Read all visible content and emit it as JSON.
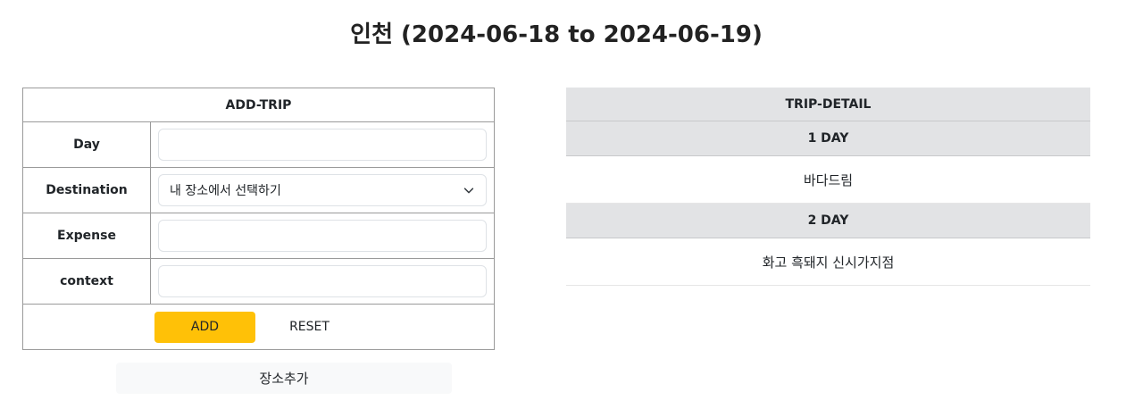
{
  "title": "인천 (2024-06-18 to 2024-06-19)",
  "add_trip": {
    "header": "ADD-TRIP",
    "fields": [
      {
        "label": "Day",
        "value": ""
      },
      {
        "label": "Destination",
        "value": "내 장소에서 선택하기"
      },
      {
        "label": "Expense",
        "value": ""
      },
      {
        "label": "context",
        "value": ""
      }
    ],
    "add_label": "ADD",
    "reset_label": "RESET",
    "add_place_label": "장소추가"
  },
  "trip_detail": {
    "header": "TRIP-DETAIL",
    "days": [
      {
        "label": "1 DAY",
        "items": [
          "바다드림"
        ]
      },
      {
        "label": "2 DAY",
        "items": [
          "화고 흑돼지 신시가지점"
        ]
      }
    ]
  },
  "colors": {
    "accent": "#ffc107",
    "header_bg": "#e2e3e5"
  },
  "icons": {
    "select_chevron": "chevron-down-icon"
  }
}
